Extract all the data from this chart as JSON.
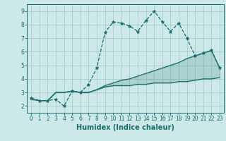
{
  "xlabel": "Humidex (Indice chaleur)",
  "bg_color": "#cce8e8",
  "grid_color": "#aacccc",
  "line_color": "#1a6b6b",
  "x": [
    0,
    1,
    2,
    3,
    4,
    5,
    6,
    7,
    8,
    9,
    10,
    11,
    12,
    13,
    14,
    15,
    16,
    17,
    18,
    19,
    20,
    21,
    22,
    23
  ],
  "line1": [
    2.6,
    2.4,
    2.4,
    2.5,
    2.0,
    3.1,
    3.0,
    3.6,
    4.8,
    7.4,
    8.2,
    8.1,
    7.9,
    7.5,
    8.3,
    9.0,
    8.2,
    7.5,
    8.1,
    7.0,
    5.7,
    5.9,
    6.1,
    4.8
  ],
  "line2": [
    2.5,
    2.4,
    2.4,
    3.0,
    3.0,
    3.1,
    3.0,
    3.0,
    3.2,
    3.4,
    3.5,
    3.5,
    3.5,
    3.6,
    3.6,
    3.7,
    3.7,
    3.7,
    3.8,
    3.8,
    3.9,
    4.0,
    4.0,
    4.1
  ],
  "line3": [
    2.5,
    2.4,
    2.4,
    3.0,
    3.0,
    3.1,
    3.0,
    3.0,
    3.2,
    3.5,
    3.7,
    3.9,
    4.0,
    4.2,
    4.4,
    4.6,
    4.8,
    5.0,
    5.2,
    5.5,
    5.7,
    5.9,
    6.1,
    4.8
  ],
  "ylim": [
    1.5,
    9.5
  ],
  "xlim": [
    -0.5,
    23.5
  ],
  "yticks": [
    2,
    3,
    4,
    5,
    6,
    7,
    8,
    9
  ],
  "xticks": [
    0,
    1,
    2,
    3,
    4,
    5,
    6,
    7,
    8,
    9,
    10,
    11,
    12,
    13,
    14,
    15,
    16,
    17,
    18,
    19,
    20,
    21,
    22,
    23
  ],
  "tick_fontsize": 5.5,
  "xlabel_fontsize": 7.0
}
